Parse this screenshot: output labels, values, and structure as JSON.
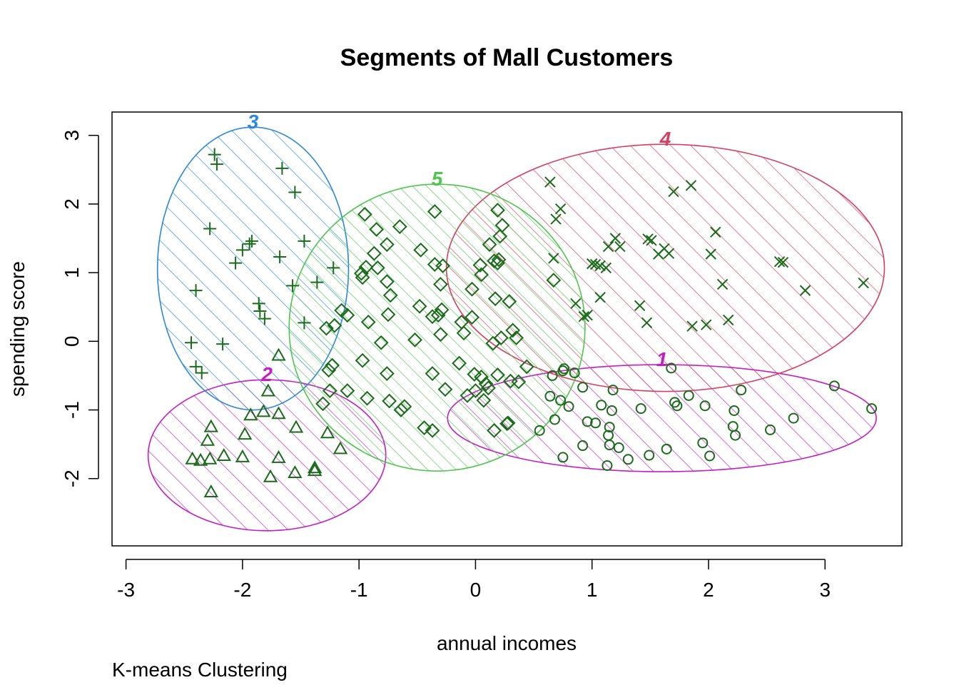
{
  "chart_data": {
    "type": "scatter",
    "title": "Segments of Mall Customers",
    "xlabel": "annual incomes",
    "ylabel": "spending score",
    "subtitle": "K-means Clustering",
    "xlim": [
      -3.12,
      3.66
    ],
    "ylim": [
      -2.98,
      3.34
    ],
    "xticks": [
      -3,
      -2,
      -1,
      0,
      1,
      2,
      3
    ],
    "yticks": [
      -2,
      -1,
      0,
      1,
      2,
      3
    ],
    "grid": false,
    "point_color": "#1a6b1a",
    "clusters": [
      {
        "label": "1",
        "color": "#c31ec3",
        "ellipse": {
          "cx": 1.6,
          "cy": -1.12,
          "rx": 1.84,
          "ry": 0.78
        },
        "marker": "circle",
        "points": [
          [
            0.76,
            -0.4
          ],
          [
            0.66,
            -0.5
          ],
          [
            0.75,
            -0.43
          ],
          [
            0.85,
            -0.46
          ],
          [
            0.92,
            -0.67
          ],
          [
            1.18,
            -0.71
          ],
          [
            1.68,
            -0.39
          ],
          [
            1.83,
            -0.79
          ],
          [
            2.28,
            -0.71
          ],
          [
            3.08,
            -0.65
          ],
          [
            3.4,
            -0.98
          ],
          [
            0.64,
            -0.8
          ],
          [
            0.73,
            -0.86
          ],
          [
            0.8,
            -0.95
          ],
          [
            0.55,
            -1.3
          ],
          [
            0.68,
            -1.14
          ],
          [
            0.96,
            -1.17
          ],
          [
            1.03,
            -1.19
          ],
          [
            1.08,
            -0.93
          ],
          [
            1.17,
            -1.01
          ],
          [
            1.15,
            -1.25
          ],
          [
            1.14,
            -1.37
          ],
          [
            1.15,
            -1.51
          ],
          [
            1.23,
            -1.55
          ],
          [
            1.13,
            -1.81
          ],
          [
            1.31,
            -1.72
          ],
          [
            1.42,
            -0.98
          ],
          [
            1.49,
            -1.66
          ],
          [
            1.64,
            -1.57
          ],
          [
            1.73,
            -0.94
          ],
          [
            1.71,
            -0.89
          ],
          [
            1.97,
            -0.94
          ],
          [
            1.95,
            -1.48
          ],
          [
            2.01,
            -1.67
          ],
          [
            2.21,
            -1.24
          ],
          [
            2.22,
            -1.01
          ],
          [
            2.23,
            -1.37
          ],
          [
            2.53,
            -1.29
          ],
          [
            2.73,
            -1.12
          ],
          [
            0.75,
            -1.69
          ],
          [
            0.92,
            -1.52
          ]
        ]
      },
      {
        "label": "2",
        "color": "#c31ec3",
        "ellipse": {
          "cx": -1.79,
          "cy": -1.66,
          "rx": 1.02,
          "ry": 1.1
        },
        "marker": "triangle",
        "points": [
          [
            -2.27,
            -1.25
          ],
          [
            -2.3,
            -1.45
          ],
          [
            -2.28,
            -1.72
          ],
          [
            -2.36,
            -1.74
          ],
          [
            -2.43,
            -1.72
          ],
          [
            -2.16,
            -1.67
          ],
          [
            -2.0,
            -1.69
          ],
          [
            -1.98,
            -1.36
          ],
          [
            -1.93,
            -1.08
          ],
          [
            -1.78,
            -0.73
          ],
          [
            -1.82,
            -1.03
          ],
          [
            -1.69,
            -1.06
          ],
          [
            -1.69,
            -0.21
          ],
          [
            -1.54,
            -1.26
          ],
          [
            -1.69,
            -1.7
          ],
          [
            -1.76,
            -1.98
          ],
          [
            -1.55,
            -1.92
          ],
          [
            -1.38,
            -1.85
          ],
          [
            -1.38,
            -1.89
          ],
          [
            -1.27,
            -1.34
          ],
          [
            -1.16,
            -1.57
          ],
          [
            -2.27,
            -2.2
          ]
        ]
      },
      {
        "label": "3",
        "color": "#2b88dc",
        "ellipse": {
          "cx": -1.91,
          "cy": 1.06,
          "rx": 0.82,
          "ry": 2.06
        },
        "marker": "plus",
        "points": [
          [
            -2.24,
            2.72
          ],
          [
            -2.22,
            2.58
          ],
          [
            -1.66,
            2.52
          ],
          [
            -1.55,
            2.17
          ],
          [
            -2.28,
            1.64
          ],
          [
            -1.68,
            1.23
          ],
          [
            -1.47,
            1.46
          ],
          [
            -1.92,
            1.46
          ],
          [
            -1.94,
            1.42
          ],
          [
            -2.0,
            1.33
          ],
          [
            -2.06,
            1.14
          ],
          [
            -1.22,
            1.07
          ],
          [
            -1.36,
            0.86
          ],
          [
            -1.57,
            0.81
          ],
          [
            -2.4,
            0.74
          ],
          [
            -1.86,
            0.55
          ],
          [
            -1.85,
            0.44
          ],
          [
            -1.81,
            0.33
          ],
          [
            -1.47,
            0.27
          ],
          [
            -2.17,
            -0.04
          ],
          [
            -2.44,
            -0.02
          ],
          [
            -2.4,
            -0.37
          ],
          [
            -2.35,
            -0.46
          ]
        ]
      },
      {
        "label": "4",
        "color": "#d63f60",
        "ellipse": {
          "cx": 1.63,
          "cy": 1.07,
          "rx": 1.88,
          "ry": 1.8
        },
        "marker": "cross",
        "points": [
          [
            0.64,
            2.32
          ],
          [
            0.73,
            1.93
          ],
          [
            0.69,
            1.78
          ],
          [
            1.7,
            2.18
          ],
          [
            1.85,
            2.27
          ],
          [
            2.06,
            1.59
          ],
          [
            1.2,
            1.5
          ],
          [
            1.14,
            1.38
          ],
          [
            1.24,
            1.38
          ],
          [
            1.48,
            1.49
          ],
          [
            1.51,
            1.47
          ],
          [
            1.57,
            1.27
          ],
          [
            1.62,
            1.35
          ],
          [
            1.66,
            1.28
          ],
          [
            2.02,
            1.27
          ],
          [
            1.0,
            1.13
          ],
          [
            1.03,
            1.12
          ],
          [
            1.07,
            1.1
          ],
          [
            1.12,
            1.07
          ],
          [
            2.61,
            1.16
          ],
          [
            2.64,
            1.15
          ],
          [
            0.67,
            1.21
          ],
          [
            2.12,
            0.83
          ],
          [
            3.33,
            0.85
          ],
          [
            2.83,
            0.74
          ],
          [
            1.07,
            0.64
          ],
          [
            0.86,
            0.55
          ],
          [
            0.96,
            0.38
          ],
          [
            0.93,
            0.36
          ],
          [
            1.41,
            0.52
          ],
          [
            1.47,
            0.27
          ],
          [
            1.86,
            0.22
          ],
          [
            1.98,
            0.24
          ],
          [
            2.17,
            0.31
          ]
        ]
      },
      {
        "label": "5",
        "color": "#4ec64e",
        "ellipse": {
          "cx": -0.33,
          "cy": 0.2,
          "rx": 1.27,
          "ry": 2.09
        },
        "marker": "diamond",
        "points": [
          [
            -0.95,
            1.85
          ],
          [
            -0.85,
            1.63
          ],
          [
            -0.65,
            1.67
          ],
          [
            -0.35,
            1.89
          ],
          [
            -0.47,
            1.33
          ],
          [
            -0.28,
            1.1
          ],
          [
            -0.35,
            1.12
          ],
          [
            0.19,
            1.91
          ],
          [
            0.23,
            1.69
          ],
          [
            0.21,
            1.53
          ],
          [
            0.12,
            1.41
          ],
          [
            0.16,
            1.17
          ],
          [
            0.19,
            1.14
          ],
          [
            0.2,
            1.19
          ],
          [
            -0.87,
            1.28
          ],
          [
            -0.94,
            1.08
          ],
          [
            -0.98,
            0.99
          ],
          [
            -0.97,
            0.93
          ],
          [
            -0.84,
            1.07
          ],
          [
            -0.76,
            1.41
          ],
          [
            -0.76,
            0.87
          ],
          [
            -0.73,
            0.67
          ],
          [
            -0.3,
            0.83
          ],
          [
            0.05,
            0.97
          ],
          [
            0.04,
            1.11
          ],
          [
            -0.03,
            0.76
          ],
          [
            0.17,
            0.62
          ],
          [
            0.29,
            0.58
          ],
          [
            -0.03,
            0.35
          ],
          [
            -0.12,
            0.28
          ],
          [
            -0.48,
            0.51
          ],
          [
            -0.32,
            0.38
          ],
          [
            -0.37,
            0.36
          ],
          [
            -0.29,
            0.46
          ],
          [
            -0.75,
            0.39
          ],
          [
            -0.92,
            0.28
          ],
          [
            -1.15,
            0.45
          ],
          [
            -1.1,
            0.38
          ],
          [
            -1.21,
            0.23
          ],
          [
            -1.28,
            0.19
          ],
          [
            -0.81,
            -0.02
          ],
          [
            -0.52,
            0.02
          ],
          [
            -0.3,
            0.1
          ],
          [
            -0.1,
            0.12
          ],
          [
            0.15,
            -0.03
          ],
          [
            0.22,
            0.05
          ],
          [
            0.32,
            0.16
          ],
          [
            0.35,
            0.05
          ],
          [
            -0.97,
            -0.28
          ],
          [
            -0.76,
            -0.47
          ],
          [
            -0.37,
            -0.47
          ],
          [
            -0.26,
            -0.7
          ],
          [
            -0.14,
            -0.32
          ],
          [
            -0.01,
            -0.48
          ],
          [
            0.05,
            -0.52
          ],
          [
            0.09,
            -0.62
          ],
          [
            0.11,
            -0.68
          ],
          [
            0.19,
            -0.49
          ],
          [
            0.3,
            -0.58
          ],
          [
            0.37,
            -0.59
          ],
          [
            -1.23,
            -0.35
          ],
          [
            -1.26,
            -0.42
          ],
          [
            -1.25,
            -0.72
          ],
          [
            -1.1,
            -0.72
          ],
          [
            -0.93,
            -0.83
          ],
          [
            -1.31,
            -0.91
          ],
          [
            -0.61,
            -0.95
          ],
          [
            -0.64,
            -1.0
          ],
          [
            -0.74,
            -0.87
          ],
          [
            -0.07,
            -0.79
          ],
          [
            0.0,
            -0.72
          ],
          [
            0.07,
            -0.86
          ],
          [
            -0.44,
            -1.26
          ],
          [
            -0.37,
            -1.3
          ],
          [
            0.16,
            -1.3
          ],
          [
            0.27,
            -1.2
          ],
          [
            0.28,
            -1.19
          ],
          [
            0.44,
            -0.37
          ],
          [
            0.67,
            0.89
          ]
        ]
      }
    ]
  }
}
